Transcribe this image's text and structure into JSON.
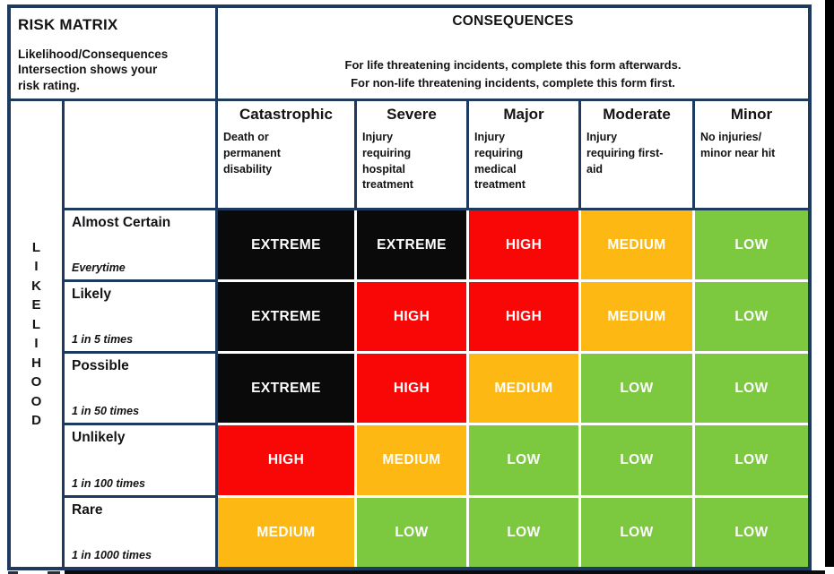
{
  "risk_block": {
    "title": "RISK MATRIX",
    "subtitle": "Likelihood/Consequences\nIntersection shows your\nrisk rating."
  },
  "consequences_block": {
    "title": "CONSEQUENCES",
    "instruction_line1": "For life threatening incidents, complete this form afterwards.",
    "instruction_line2": "For non-life threatening incidents, complete this form first."
  },
  "likelihood_label": "LIKELIHOOD",
  "columns": [
    {
      "name": "Catastrophic",
      "description": "Death or\npermanent\ndisability"
    },
    {
      "name": "Severe",
      "description": "Injury\nrequiring\nhospital\ntreatment"
    },
    {
      "name": "Major",
      "description": "Injury\nrequiring\nmedical\ntreatment"
    },
    {
      "name": "Moderate",
      "description": "Injury\nrequiring first-\naid"
    },
    {
      "name": "Minor",
      "description": "No injuries/\nminor near hit"
    }
  ],
  "rows": [
    {
      "name": "Almost Certain",
      "frequency": "Everytime",
      "ratings": [
        "EXTREME",
        "EXTREME",
        "HIGH",
        "MEDIUM",
        "LOW"
      ]
    },
    {
      "name": "Likely",
      "frequency": "1 in 5 times",
      "ratings": [
        "EXTREME",
        "HIGH",
        "HIGH",
        "MEDIUM",
        "LOW"
      ]
    },
    {
      "name": "Possible",
      "frequency": "1 in 50 times",
      "ratings": [
        "EXTREME",
        "HIGH",
        "MEDIUM",
        "LOW",
        "LOW"
      ]
    },
    {
      "name": "Unlikely",
      "frequency": "1 in 100 times",
      "ratings": [
        "HIGH",
        "MEDIUM",
        "LOW",
        "LOW",
        "LOW"
      ]
    },
    {
      "name": "Rare",
      "frequency": "1 in 1000 times",
      "ratings": [
        "MEDIUM",
        "LOW",
        "LOW",
        "LOW",
        "LOW"
      ]
    }
  ],
  "rating_colors": {
    "EXTREME": "#0a0a0a",
    "HIGH": "#f90707",
    "MEDIUM": "#fdb813",
    "LOW": "#7cc83f"
  },
  "border_color": "#1e3a5e",
  "rating_text_color": "#ffffff"
}
